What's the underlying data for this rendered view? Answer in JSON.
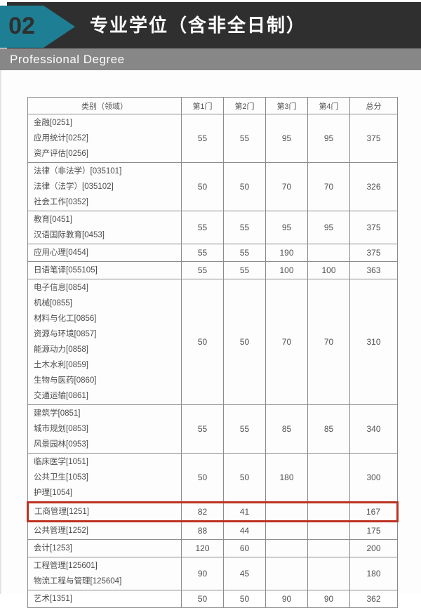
{
  "header": {
    "number": "02",
    "title": "专业学位（含非全日制）",
    "subtitle": "Professional Degree",
    "accent_color": "#1e7e93",
    "dark_color": "#2f2f2f",
    "graybar_color": "#878787"
  },
  "table": {
    "highlight_color": "#bc3220",
    "columns": [
      "类别（领域）",
      "第1门",
      "第2门",
      "第3门",
      "第4门",
      "总分"
    ],
    "rows": [
      {
        "categories": [
          "金融[0251]",
          "应用统计[0252]",
          "资产评估[0256]"
        ],
        "scores": [
          "55",
          "55",
          "95",
          "95",
          "375"
        ]
      },
      {
        "categories": [
          "法律（非法学）[035101]",
          "法律（法学）[035102]",
          "社会工作[0352]"
        ],
        "scores": [
          "50",
          "50",
          "70",
          "70",
          "326"
        ]
      },
      {
        "categories": [
          "教育[0451]",
          "汉语国际教育[0453]"
        ],
        "scores": [
          "55",
          "55",
          "95",
          "95",
          "375"
        ]
      },
      {
        "categories": [
          "应用心理[0454]"
        ],
        "scores": [
          "55",
          "55",
          "190",
          "",
          "375"
        ]
      },
      {
        "categories": [
          "日语笔译[055105]"
        ],
        "scores": [
          "55",
          "55",
          "100",
          "100",
          "363"
        ]
      },
      {
        "categories": [
          "电子信息[0854]",
          "机械[0855]",
          "材料与化工[0856]",
          "资源与环境[0857]",
          "能源动力[0858]",
          "土木水利[0859]",
          "生物与医药[0860]",
          "交通运输[0861]"
        ],
        "scores": [
          "50",
          "50",
          "70",
          "70",
          "310"
        ]
      },
      {
        "categories": [
          "建筑学[0851]",
          "城市规划[0853]",
          "风景园林[0953]"
        ],
        "scores": [
          "55",
          "55",
          "85",
          "85",
          "340"
        ]
      },
      {
        "categories": [
          "临床医学[1051]",
          "公共卫生[1053]",
          "护理[1054]"
        ],
        "scores": [
          "50",
          "50",
          "180",
          "",
          "300"
        ]
      },
      {
        "categories": [
          "工商管理[1251]"
        ],
        "scores": [
          "82",
          "41",
          "",
          "",
          "167"
        ],
        "highlighted": true
      },
      {
        "categories": [
          "公共管理[1252]"
        ],
        "scores": [
          "88",
          "44",
          "",
          "",
          "175"
        ]
      },
      {
        "categories": [
          "会计[1253]"
        ],
        "scores": [
          "120",
          "60",
          "",
          "",
          "200"
        ]
      },
      {
        "categories": [
          "工程管理[125601]",
          "物流工程与管理[125604]"
        ],
        "scores": [
          "90",
          "45",
          "",
          "",
          "180"
        ]
      },
      {
        "categories": [
          "艺术[1351]"
        ],
        "scores": [
          "50",
          "50",
          "90",
          "90",
          "362"
        ]
      }
    ]
  }
}
